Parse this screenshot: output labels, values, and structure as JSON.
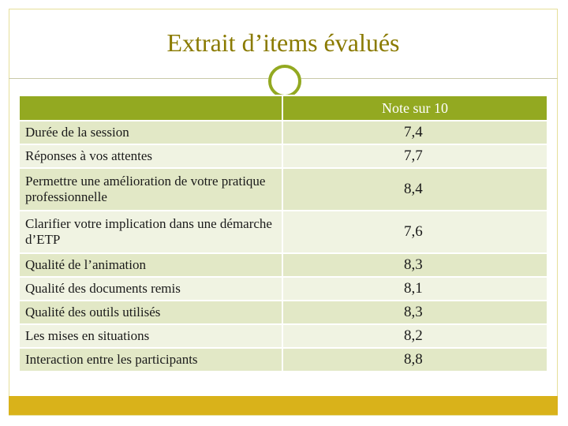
{
  "slide": {
    "title": "Extrait d’items évalués",
    "colors": {
      "title": "#8a7a00",
      "header": "#93a921",
      "row_odd": "#e2e8c6",
      "row_even": "#f0f3e2",
      "footer": "#d9b21a"
    }
  },
  "table": {
    "headers": [
      "",
      "Note sur 10"
    ],
    "rows": [
      {
        "label": "Durée de la session",
        "score": "7,4"
      },
      {
        "label": "Réponses à vos attentes",
        "score": "7,7"
      },
      {
        "label": "Permettre une amélioration de votre pratique professionnelle",
        "score": "8,4"
      },
      {
        "label": "Clarifier votre implication dans une démarche d’ETP",
        "score": "7,6"
      },
      {
        "label": "Qualité de l’animation",
        "score": "8,3"
      },
      {
        "label": "Qualité des documents remis",
        "score": "8,1"
      },
      {
        "label": "Qualité des outils utilisés",
        "score": "8,3"
      },
      {
        "label": "Les mises en situations",
        "score": "8,2"
      },
      {
        "label": "Interaction entre les participants",
        "score": "8,8"
      }
    ]
  }
}
